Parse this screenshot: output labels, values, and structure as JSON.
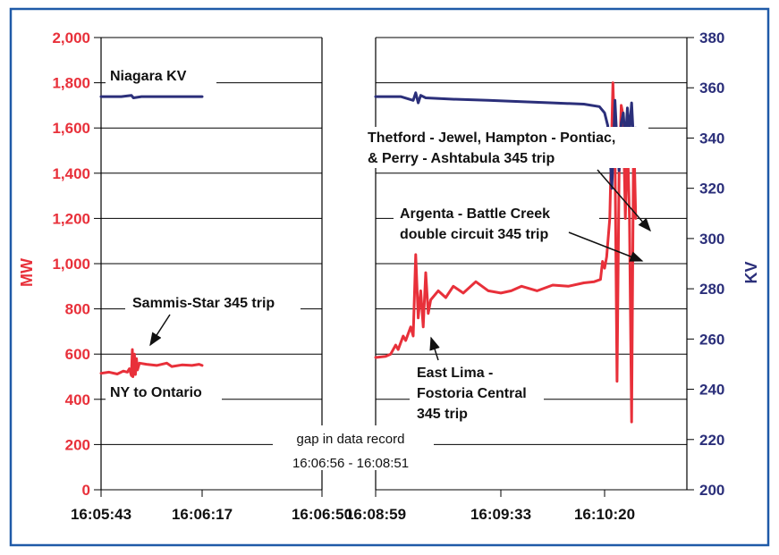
{
  "chart_data": {
    "type": "line",
    "title": "",
    "ylabel_left": "MW",
    "ylabel_right": "KV",
    "ylim_left": [
      0,
      2000
    ],
    "ylim_right": [
      200,
      380
    ],
    "y_ticks_left": [
      "0",
      "200",
      "400",
      "600",
      "800",
      "1,000",
      "1,200",
      "1,400",
      "1,600",
      "1,800",
      "2,000"
    ],
    "y_ticks_right": [
      "200",
      "220",
      "240",
      "260",
      "280",
      "300",
      "320",
      "340",
      "360",
      "380"
    ],
    "x_ticks": [
      "16:05:43",
      "16:06:17",
      "16:06:50",
      "16:08:59",
      "16:09:33",
      "16:10:20"
    ],
    "grid": true,
    "gap_label": "gap in data record",
    "gap_range": "16:06:56 - 16:08:51",
    "series": [
      {
        "name": "NY to Ontario",
        "axis": "left",
        "color": "#e8303a",
        "segments": [
          [
            [
              0,
              515
            ],
            [
              0.08,
              520
            ],
            [
              0.16,
              512
            ],
            [
              0.22,
              525
            ],
            [
              0.26,
              520
            ],
            [
              0.28,
              535
            ],
            [
              0.3,
              505
            ],
            [
              0.31,
              620
            ],
            [
              0.315,
              500
            ],
            [
              0.33,
              600
            ],
            [
              0.34,
              510
            ],
            [
              0.35,
              580
            ],
            [
              0.36,
              530
            ],
            [
              0.38,
              560
            ],
            [
              0.45,
              555
            ],
            [
              0.55,
              550
            ],
            [
              0.65,
              560
            ],
            [
              0.7,
              545
            ],
            [
              0.8,
              552
            ],
            [
              0.9,
              550
            ],
            [
              0.97,
              555
            ],
            [
              1.0,
              550
            ]
          ],
          [
            [
              3.0,
              585
            ],
            [
              3.08,
              590
            ],
            [
              3.12,
              600
            ],
            [
              3.16,
              640
            ],
            [
              3.18,
              620
            ],
            [
              3.22,
              680
            ],
            [
              3.24,
              660
            ],
            [
              3.28,
              720
            ],
            [
              3.3,
              680
            ],
            [
              3.32,
              1040
            ],
            [
              3.34,
              760
            ],
            [
              3.36,
              880
            ],
            [
              3.38,
              720
            ],
            [
              3.4,
              960
            ],
            [
              3.42,
              780
            ],
            [
              3.44,
              840
            ],
            [
              3.5,
              880
            ],
            [
              3.56,
              850
            ],
            [
              3.62,
              900
            ],
            [
              3.7,
              870
            ],
            [
              3.8,
              920
            ],
            [
              3.9,
              880
            ],
            [
              4.0,
              870
            ],
            [
              4.1,
              880
            ],
            [
              4.2,
              900
            ],
            [
              4.35,
              880
            ],
            [
              4.5,
              905
            ],
            [
              4.65,
              900
            ],
            [
              4.8,
              915
            ],
            [
              4.9,
              920
            ],
            [
              4.96,
              930
            ],
            [
              4.98,
              1010
            ],
            [
              5.0,
              980
            ],
            [
              5.02,
              1030
            ],
            [
              5.05,
              1200
            ],
            [
              5.08,
              1800
            ],
            [
              5.1,
              1500
            ],
            [
              5.12,
              480
            ],
            [
              5.14,
              1400
            ],
            [
              5.16,
              1700
            ],
            [
              5.18,
              1650
            ],
            [
              5.2,
              1200
            ],
            [
              5.22,
              1560
            ],
            [
              5.24,
              1200
            ],
            [
              5.26,
              300
            ],
            [
              5.28,
              1600
            ],
            [
              5.3,
              1200
            ]
          ]
        ]
      },
      {
        "name": "Niagara KV",
        "axis": "right",
        "color": "#2b2f7a",
        "segments": [
          [
            [
              0,
              356.5
            ],
            [
              0.2,
              356.5
            ],
            [
              0.3,
              357
            ],
            [
              0.32,
              356
            ],
            [
              0.4,
              356.5
            ],
            [
              0.6,
              356.5
            ],
            [
              0.8,
              356.5
            ],
            [
              1.0,
              356.5
            ]
          ],
          [
            [
              3.0,
              356.5
            ],
            [
              3.2,
              356.5
            ],
            [
              3.3,
              355
            ],
            [
              3.32,
              358
            ],
            [
              3.34,
              354
            ],
            [
              3.36,
              357
            ],
            [
              3.4,
              356
            ],
            [
              3.6,
              355.5
            ],
            [
              3.9,
              355
            ],
            [
              4.2,
              354.5
            ],
            [
              4.5,
              354
            ],
            [
              4.8,
              353.5
            ],
            [
              4.95,
              352.5
            ],
            [
              5.0,
              350
            ],
            [
              5.03,
              345
            ],
            [
              5.05,
              335
            ],
            [
              5.07,
              320
            ],
            [
              5.09,
              342
            ],
            [
              5.1,
              355
            ],
            [
              5.12,
              338
            ],
            [
              5.14,
              327
            ],
            [
              5.16,
              346
            ],
            [
              5.18,
              350
            ],
            [
              5.2,
              338
            ],
            [
              5.22,
              352
            ],
            [
              5.24,
              342
            ],
            [
              5.26,
              354
            ],
            [
              5.28,
              338
            ],
            [
              5.3,
              344
            ]
          ]
        ]
      }
    ],
    "annotations": [
      {
        "text": "Niagara KV"
      },
      {
        "text": "Thetford - Jewel, Hampton - Pontiac,"
      },
      {
        "text": "& Perry - Ashtabula 345 trip"
      },
      {
        "text": "Argenta - Battle Creek"
      },
      {
        "text": "double circuit 345 trip"
      },
      {
        "text": "Sammis-Star 345 trip"
      },
      {
        "text": "NY to Ontario"
      },
      {
        "text": "East Lima -"
      },
      {
        "text": "Fostoria Central"
      },
      {
        "text": "345 trip"
      }
    ]
  },
  "colors": {
    "frame": "#1f5aa8",
    "mw": "#e8303a",
    "kv": "#2b2f7a"
  }
}
